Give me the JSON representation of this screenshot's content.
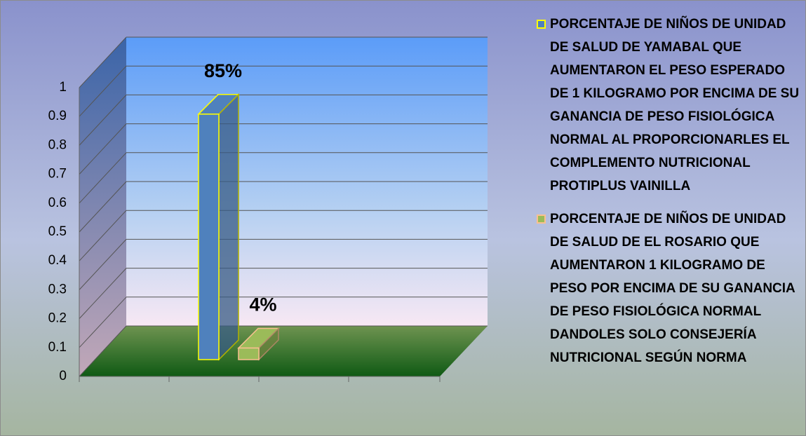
{
  "chart_data": {
    "type": "bar3d",
    "categories": [
      null
    ],
    "series": [
      {
        "name": "PORCENTAJE DE NIÑOS DE UNIDAD DE SALUD DE YAMABAL QUE AUMENTARON EL PESO ESPERADO DE 1 KILOGRAMO POR ENCIMA DE SU GANANCIA DE PESO FISIOLÓGICA NORMAL AL PROPORCIONARLES EL COMPLEMENTO NUTRICIONAL PROTIPLUS VAINILLA",
        "color": "#4f81bd",
        "edge_color": "#ffff00",
        "values": [
          0.85
        ],
        "value_labels": [
          "85%"
        ]
      },
      {
        "name": "PORCENTAJE DE NIÑOS DE UNIDAD DE SALUD DE EL ROSARIO QUE AUMENTARON 1 KILOGRAMO DE PESO POR ENCIMA DE SU GANANCIA DE PESO FISIOLÓGICA NORMAL DANDOLES SOLO CONSEJERÍA NUTRICIONAL SEGÚN NORMA",
        "color": "#9bbb59",
        "edge_color": "#fac090",
        "values": [
          0.04
        ],
        "value_labels": [
          "4%"
        ]
      }
    ],
    "ylim": [
      0,
      1
    ],
    "yticks": [
      0,
      0.1,
      0.2,
      0.3,
      0.4,
      0.5,
      0.6,
      0.7,
      0.8,
      0.9,
      1
    ],
    "grid": true,
    "legend": "right"
  }
}
